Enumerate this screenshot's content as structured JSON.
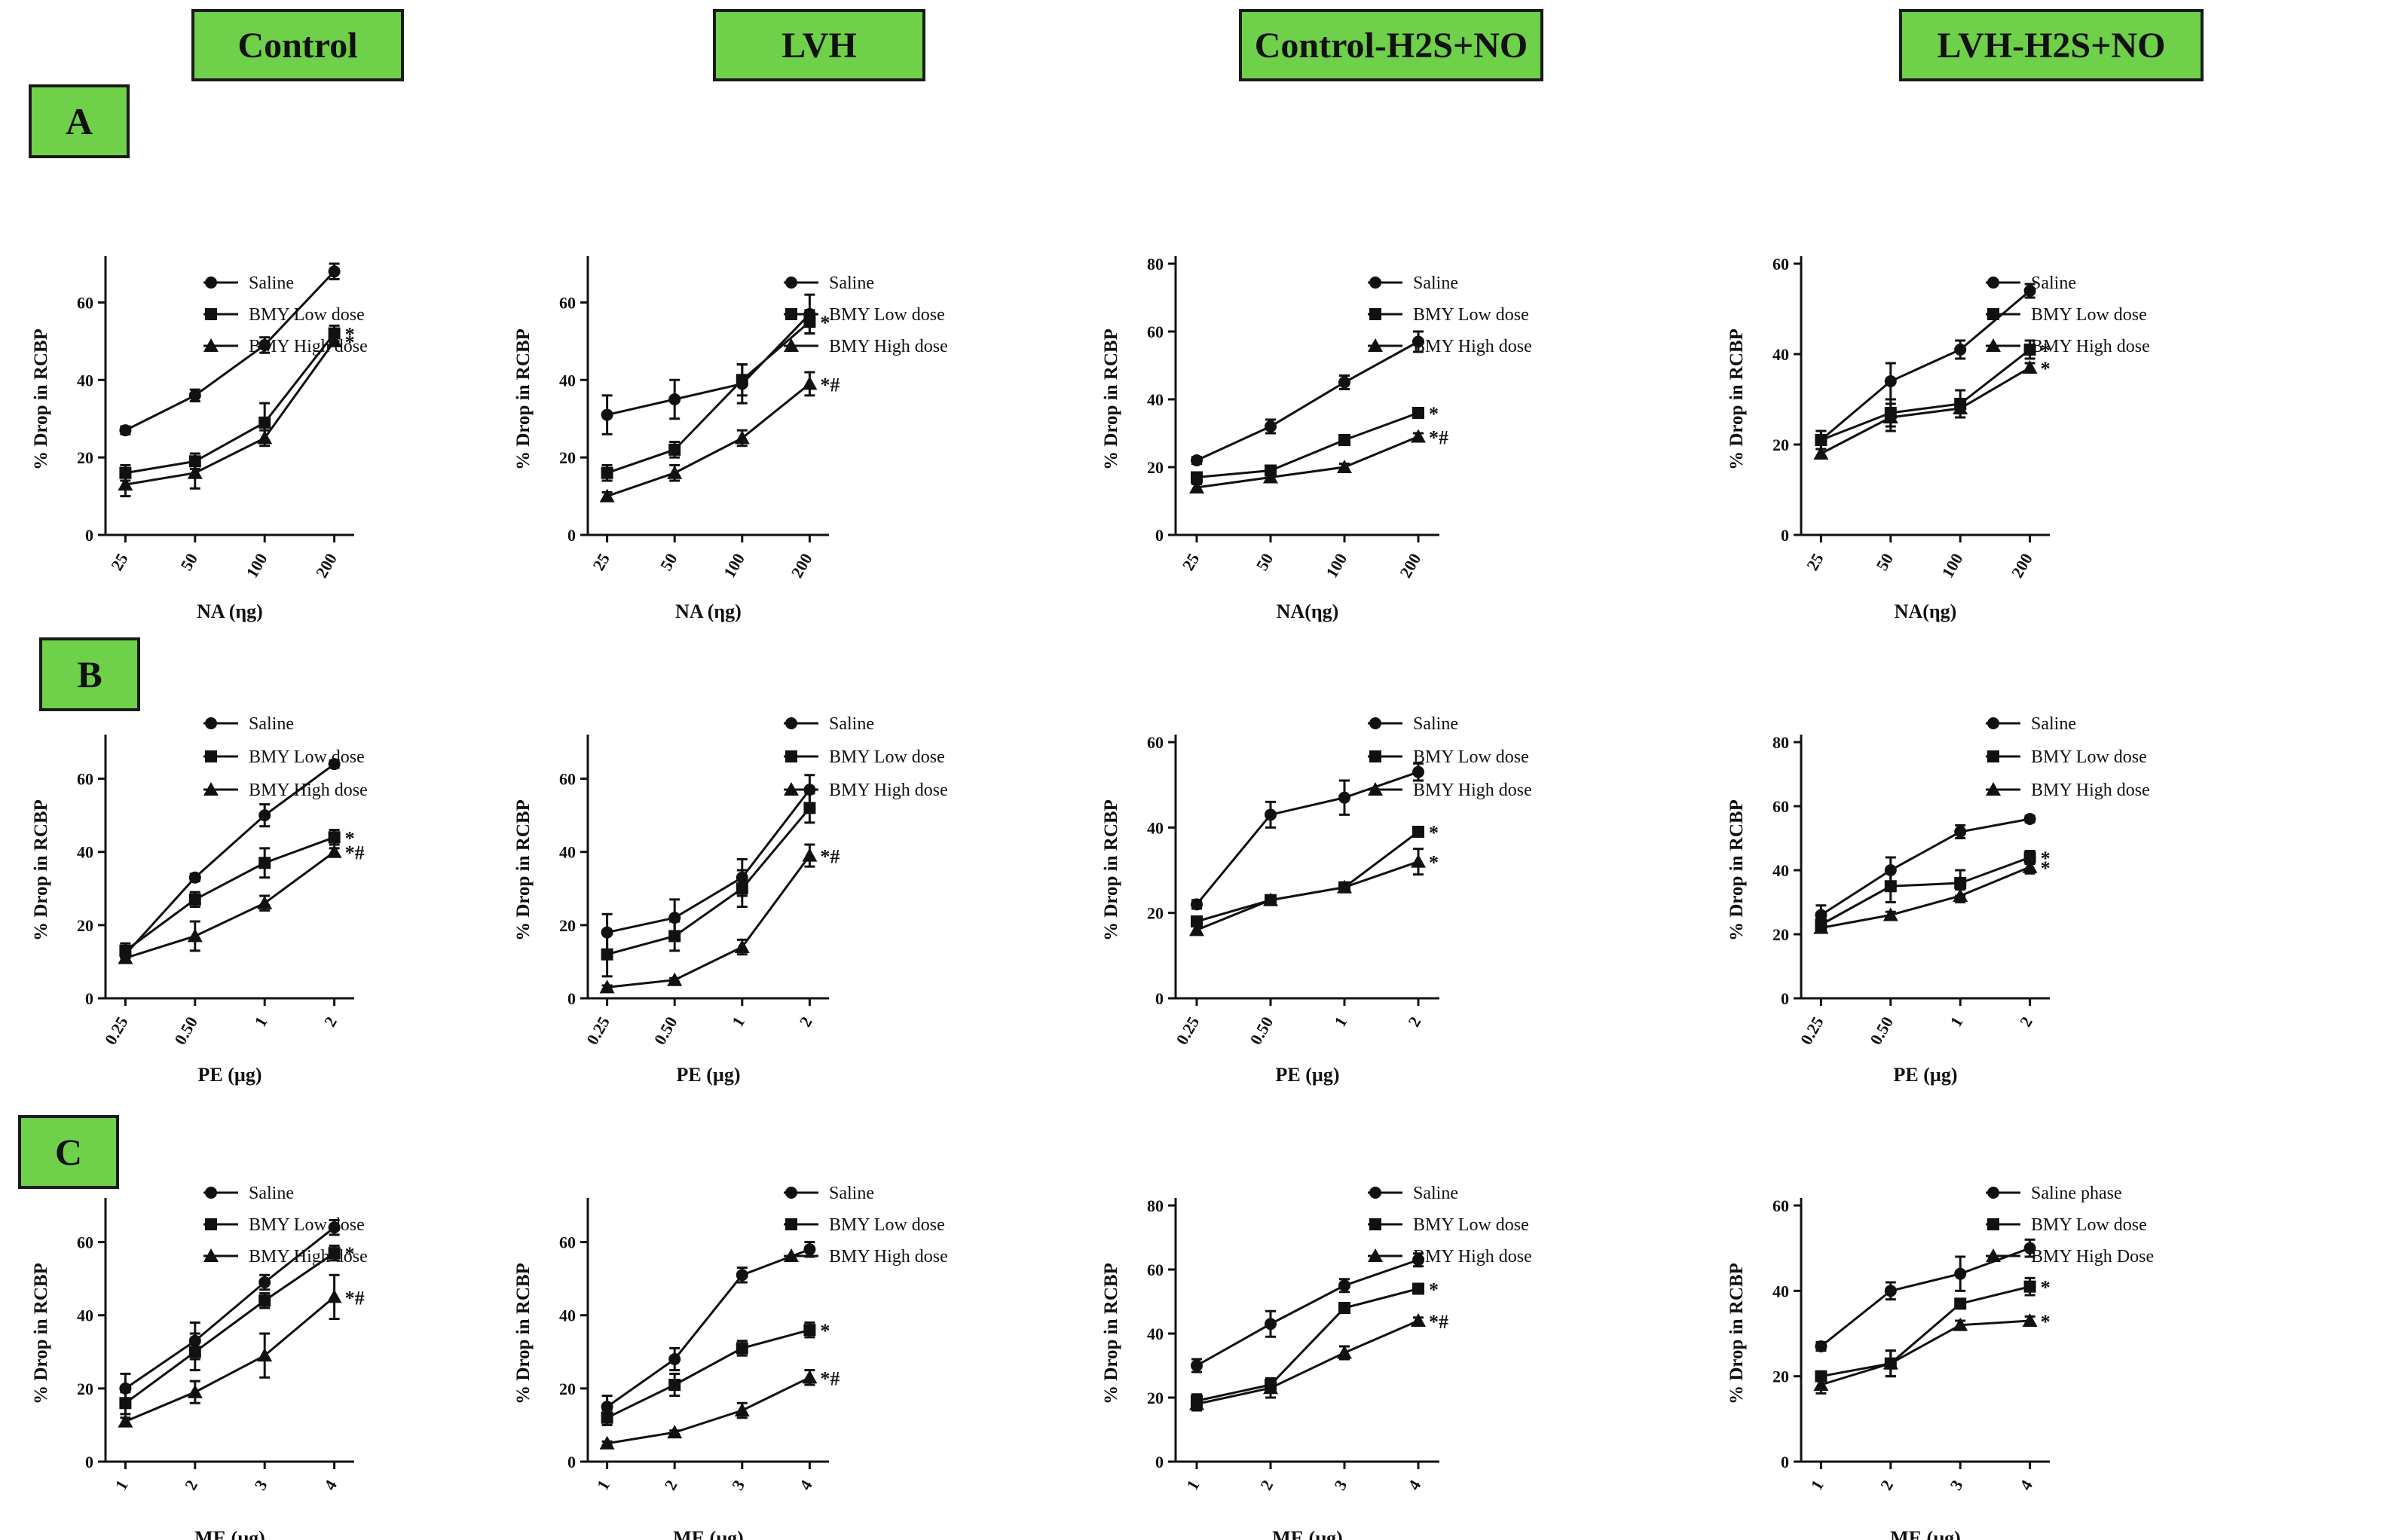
{
  "column_headers": [
    "Control",
    "LVH",
    "Control-H2S+NO",
    "LVH-H2S+NO"
  ],
  "row_labels": [
    "A",
    "B",
    "C"
  ],
  "style": {
    "line_color": "#111111",
    "header_fill": "#6fd04a",
    "header_border": "#1a1a1a"
  },
  "chart_data": [
    {
      "id": "A-control",
      "type": "line",
      "title": "",
      "xlabel": "NA (ηg)",
      "ylabel": "% Drop in RCBP",
      "categories": [
        "25",
        "50",
        "100",
        "200"
      ],
      "ylim": [
        0,
        70
      ],
      "yticks": [
        "0",
        "20",
        "40",
        "60"
      ],
      "series": [
        {
          "name": "Saline",
          "marker": "circle",
          "values": [
            27,
            36,
            49,
            68
          ],
          "errors": [
            1,
            1.5,
            2,
            2
          ],
          "annotation": ""
        },
        {
          "name": "BMY Low dose",
          "marker": "square",
          "values": [
            16,
            19,
            29,
            52
          ],
          "errors": [
            2,
            2,
            5,
            2
          ],
          "annotation": "*"
        },
        {
          "name": "BMY High dose",
          "marker": "triangle",
          "values": [
            13,
            16,
            25,
            50
          ],
          "errors": [
            3,
            4,
            2,
            1
          ],
          "annotation": "*"
        }
      ]
    },
    {
      "id": "A-lvh",
      "type": "line",
      "title": "",
      "xlabel": "NA (ηg)",
      "ylabel": "% Drop in RCBP",
      "categories": [
        "25",
        "50",
        "100",
        "200"
      ],
      "ylim": [
        0,
        70
      ],
      "yticks": [
        "0",
        "20",
        "40",
        "60"
      ],
      "series": [
        {
          "name": "Saline",
          "marker": "circle",
          "values": [
            31,
            35,
            39,
            57
          ],
          "errors": [
            5,
            5,
            5,
            5
          ],
          "annotation": ""
        },
        {
          "name": "BMY Low dose",
          "marker": "square",
          "values": [
            16,
            22,
            40,
            55
          ],
          "errors": [
            2,
            2,
            4,
            3
          ],
          "annotation": "*"
        },
        {
          "name": "BMY High dose",
          "marker": "triangle",
          "values": [
            10,
            16,
            25,
            39
          ],
          "errors": [
            1,
            2,
            2,
            3
          ],
          "annotation": "*#"
        }
      ]
    },
    {
      "id": "A-control-h2s-no",
      "type": "line",
      "title": "",
      "xlabel": "NA(ηg)",
      "ylabel": "% Drop in RCBP",
      "categories": [
        "25",
        "50",
        "100",
        "200"
      ],
      "ylim": [
        0,
        80
      ],
      "yticks": [
        "0",
        "20",
        "40",
        "60",
        "80"
      ],
      "series": [
        {
          "name": "Saline",
          "marker": "circle",
          "values": [
            22,
            32,
            45,
            57
          ],
          "errors": [
            1,
            2,
            2,
            3
          ],
          "annotation": ""
        },
        {
          "name": "BMY Low dose",
          "marker": "square",
          "values": [
            17,
            19,
            28,
            36
          ],
          "errors": [
            1,
            1,
            1,
            1
          ],
          "annotation": "*"
        },
        {
          "name": "BMY High dose",
          "marker": "triangle",
          "values": [
            14,
            17,
            20,
            29
          ],
          "errors": [
            1,
            1,
            1,
            1
          ],
          "annotation": "*#"
        }
      ]
    },
    {
      "id": "A-lvh-h2s-no",
      "type": "line",
      "title": "",
      "xlabel": "NA(ηg)",
      "ylabel": "% Drop in RCBP",
      "categories": [
        "25",
        "50",
        "100",
        "200"
      ],
      "ylim": [
        0,
        60
      ],
      "yticks": [
        "0",
        "20",
        "40",
        "60"
      ],
      "series": [
        {
          "name": "Saline",
          "marker": "circle",
          "values": [
            21,
            34,
            41,
            54
          ],
          "errors": [
            2,
            4,
            2,
            1.5
          ],
          "annotation": ""
        },
        {
          "name": "BMY Low dose",
          "marker": "square",
          "values": [
            21,
            27,
            29,
            41
          ],
          "errors": [
            2,
            3,
            3,
            2
          ],
          "annotation": "*"
        },
        {
          "name": "BMY High dose",
          "marker": "triangle",
          "values": [
            18,
            26,
            28,
            37
          ],
          "errors": [
            1,
            3,
            2,
            1
          ],
          "annotation": "*"
        }
      ]
    },
    {
      "id": "B-control",
      "type": "line",
      "title": "",
      "xlabel": "PE (µg)",
      "ylabel": "% Drop in RCBP",
      "categories": [
        "0.25",
        "0.50",
        "1",
        "2"
      ],
      "ylim": [
        0,
        70
      ],
      "yticks": [
        "0",
        "20",
        "40",
        "60"
      ],
      "series": [
        {
          "name": "Saline",
          "marker": "circle",
          "values": [
            12,
            33,
            50,
            64
          ],
          "errors": [
            1,
            1,
            3,
            1
          ],
          "annotation": ""
        },
        {
          "name": "BMY Low dose",
          "marker": "square",
          "values": [
            13,
            27,
            37,
            44
          ],
          "errors": [
            2,
            2,
            4,
            2
          ],
          "annotation": "*"
        },
        {
          "name": "BMY High dose",
          "marker": "triangle",
          "values": [
            11,
            17,
            26,
            40
          ],
          "errors": [
            1,
            4,
            2,
            1
          ],
          "annotation": "*#"
        }
      ]
    },
    {
      "id": "B-lvh",
      "type": "line",
      "title": "",
      "xlabel": "PE (µg)",
      "ylabel": "% Drop in RCBP",
      "categories": [
        "0.25",
        "0.50",
        "1",
        "2"
      ],
      "ylim": [
        0,
        70
      ],
      "yticks": [
        "0",
        "20",
        "40",
        "60"
      ],
      "series": [
        {
          "name": "Saline",
          "marker": "circle",
          "values": [
            18,
            22,
            33,
            57
          ],
          "errors": [
            5,
            5,
            5,
            4
          ],
          "annotation": ""
        },
        {
          "name": "BMY Low dose",
          "marker": "square",
          "values": [
            12,
            17,
            30,
            52
          ],
          "errors": [
            6,
            4,
            5,
            4
          ],
          "annotation": ""
        },
        {
          "name": "BMY High dose",
          "marker": "triangle",
          "values": [
            3,
            5,
            14,
            39
          ],
          "errors": [
            0.5,
            0.5,
            2,
            3
          ],
          "annotation": "*#"
        }
      ]
    },
    {
      "id": "B-control-h2s-no",
      "type": "line",
      "title": "",
      "xlabel": "PE (µg)",
      "ylabel": "% Drop in RCBP",
      "categories": [
        "0.25",
        "0.50",
        "1",
        "2"
      ],
      "ylim": [
        0,
        60
      ],
      "yticks": [
        "0",
        "20",
        "40",
        "60"
      ],
      "series": [
        {
          "name": "Saline",
          "marker": "circle",
          "values": [
            22,
            43,
            47,
            53
          ],
          "errors": [
            1,
            3,
            4,
            2
          ],
          "annotation": ""
        },
        {
          "name": "BMY Low dose",
          "marker": "square",
          "values": [
            18,
            23,
            26,
            39
          ],
          "errors": [
            1,
            1,
            1,
            1
          ],
          "annotation": "*"
        },
        {
          "name": "BMY High dose",
          "marker": "triangle",
          "values": [
            16,
            23,
            26,
            32
          ],
          "errors": [
            1,
            1,
            1,
            3
          ],
          "annotation": "*"
        }
      ]
    },
    {
      "id": "B-lvh-h2s-no",
      "type": "line",
      "title": "",
      "xlabel": "PE (µg)",
      "ylabel": "% Drop in RCBP",
      "categories": [
        "0.25",
        "0.50",
        "1",
        "2"
      ],
      "ylim": [
        0,
        80
      ],
      "yticks": [
        "0",
        "20",
        "40",
        "60",
        "80"
      ],
      "series": [
        {
          "name": "Saline",
          "marker": "circle",
          "values": [
            26,
            40,
            52,
            56
          ],
          "errors": [
            3,
            4,
            2,
            1
          ],
          "annotation": ""
        },
        {
          "name": "BMY Low dose",
          "marker": "square",
          "values": [
            23,
            35,
            36,
            44
          ],
          "errors": [
            2,
            5,
            4,
            2
          ],
          "annotation": "*"
        },
        {
          "name": "BMY High dose",
          "marker": "triangle",
          "values": [
            22,
            26,
            32,
            41
          ],
          "errors": [
            1,
            1,
            2,
            2
          ],
          "annotation": "*"
        }
      ]
    },
    {
      "id": "C-control",
      "type": "line",
      "title": "",
      "xlabel": "ME (µg)",
      "ylabel": "% Drop in RCBP",
      "categories": [
        "1",
        "2",
        "3",
        "4"
      ],
      "ylim": [
        0,
        70
      ],
      "yticks": [
        "0",
        "20",
        "40",
        "60"
      ],
      "series": [
        {
          "name": "Saline",
          "marker": "circle",
          "values": [
            20,
            33,
            49,
            64
          ],
          "errors": [
            4,
            5,
            2,
            2
          ],
          "annotation": ""
        },
        {
          "name": "BMY Low dose",
          "marker": "square",
          "values": [
            16,
            30,
            44,
            57
          ],
          "errors": [
            3,
            5,
            2,
            2
          ],
          "annotation": "*"
        },
        {
          "name": "BMY High dose",
          "marker": "triangle",
          "values": [
            11,
            19,
            29,
            45
          ],
          "errors": [
            1,
            3,
            6,
            6
          ],
          "annotation": "*#"
        }
      ]
    },
    {
      "id": "C-lvh",
      "type": "line",
      "title": "",
      "xlabel": "ME (µg)",
      "ylabel": "% Drop in RCBP",
      "categories": [
        "1",
        "2",
        "3",
        "4"
      ],
      "ylim": [
        0,
        70
      ],
      "yticks": [
        "0",
        "20",
        "40",
        "60"
      ],
      "series": [
        {
          "name": "Saline",
          "marker": "circle",
          "values": [
            15,
            28,
            51,
            58
          ],
          "errors": [
            3,
            3,
            2,
            2
          ],
          "annotation": ""
        },
        {
          "name": "BMY Low dose",
          "marker": "square",
          "values": [
            12,
            21,
            31,
            36
          ],
          "errors": [
            2,
            3,
            2,
            2
          ],
          "annotation": "*"
        },
        {
          "name": "BMY High dose",
          "marker": "triangle",
          "values": [
            5,
            8,
            14,
            23
          ],
          "errors": [
            0.5,
            0.5,
            2,
            2
          ],
          "annotation": "*#"
        }
      ]
    },
    {
      "id": "C-control-h2s-no",
      "type": "line",
      "title": "",
      "xlabel": "ME (µg)",
      "ylabel": "% Drop in RCBP",
      "categories": [
        "1",
        "2",
        "3",
        "4"
      ],
      "ylim": [
        0,
        80
      ],
      "yticks": [
        "0",
        "20",
        "40",
        "60",
        "80"
      ],
      "series": [
        {
          "name": "Saline",
          "marker": "circle",
          "values": [
            30,
            43,
            55,
            63
          ],
          "errors": [
            2,
            4,
            2,
            2
          ],
          "annotation": ""
        },
        {
          "name": "BMY Low dose",
          "marker": "square",
          "values": [
            19,
            24,
            48,
            54
          ],
          "errors": [
            2,
            2,
            1,
            1
          ],
          "annotation": "*"
        },
        {
          "name": "BMY High dose",
          "marker": "triangle",
          "values": [
            18,
            23,
            34,
            44
          ],
          "errors": [
            2,
            3,
            2,
            1
          ],
          "annotation": "*#"
        }
      ]
    },
    {
      "id": "C-lvh-h2s-no",
      "type": "line",
      "title": "",
      "xlabel": "ME (µg)",
      "ylabel": "% Drop in RCBP",
      "categories": [
        "1",
        "2",
        "3",
        "4"
      ],
      "ylim": [
        0,
        60
      ],
      "yticks": [
        "0",
        "20",
        "40",
        "60"
      ],
      "series": [
        {
          "name": "Saline phase",
          "marker": "circle",
          "values": [
            27,
            40,
            44,
            50
          ],
          "errors": [
            1,
            2,
            4,
            2
          ],
          "annotation": ""
        },
        {
          "name": "BMY Low dose",
          "marker": "square",
          "values": [
            20,
            23,
            37,
            41
          ],
          "errors": [
            1,
            3,
            1,
            2
          ],
          "annotation": "*"
        },
        {
          "name": "BMY High Dose",
          "marker": "triangle",
          "values": [
            18,
            23,
            32,
            33
          ],
          "errors": [
            2,
            3,
            1,
            1
          ],
          "annotation": "*"
        }
      ]
    }
  ]
}
